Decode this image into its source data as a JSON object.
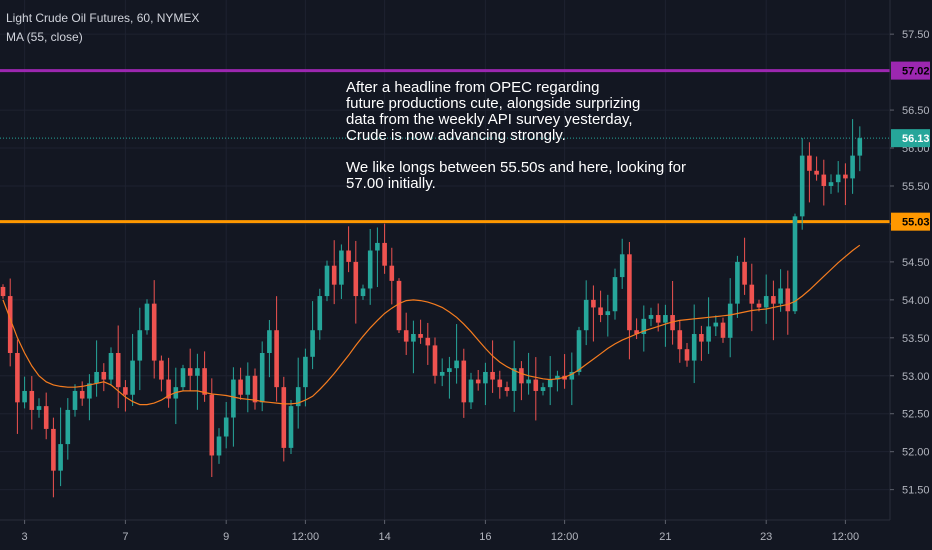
{
  "chart_data": {
    "type": "candlestick",
    "symbol_line": "Light Crude Oil Futures, 60, NYMEX",
    "indicator_line": "MA (55, close)",
    "y_ticks": [
      51.5,
      52.0,
      52.5,
      53.0,
      53.5,
      54.0,
      54.5,
      55.0,
      55.5,
      56.0,
      56.5,
      57.5
    ],
    "y_tick_labels": [
      "51.50",
      "52.00",
      "52.50",
      "53.00",
      "53.50",
      "54.00",
      "54.50",
      "55.00",
      "55.50",
      "56.00",
      "56.50",
      "57.50"
    ],
    "ylim": [
      51.1,
      57.95
    ],
    "x_ticks": [
      {
        "label": "3",
        "i": 3
      },
      {
        "label": "7",
        "i": 17
      },
      {
        "label": "9",
        "i": 31
      },
      {
        "label": "12:00",
        "i": 42
      },
      {
        "label": "14",
        "i": 53
      },
      {
        "label": "16",
        "i": 67
      },
      {
        "label": "12:00",
        "i": 78
      },
      {
        "label": "21",
        "i": 92
      },
      {
        "label": "23",
        "i": 106
      },
      {
        "label": "12:00",
        "i": 117
      }
    ],
    "num_bars": 120,
    "levels": [
      {
        "name": "resistance",
        "value": 57.02,
        "label": "57.02",
        "color": "#9c27b0"
      },
      {
        "name": "support",
        "value": 55.03,
        "label": "55.03",
        "color": "#ff9800"
      }
    ],
    "last_price": {
      "value": 56.13,
      "label": "56.13",
      "color": "#26a69a"
    },
    "annotation": [
      "After a headline from OPEC regarding",
      "future productions cute, alongside surprizing",
      "data from the weekly API survey yesterday,",
      "Crude is now advancing strongly.",
      "",
      "We like longs between 55.50s and here, looking for",
      "57.00 initially."
    ],
    "close": [
      54.05,
      53.3,
      52.65,
      52.8,
      52.55,
      52.6,
      52.3,
      51.75,
      52.1,
      52.55,
      52.8,
      52.7,
      52.9,
      53.05,
      52.95,
      53.3,
      52.85,
      52.75,
      53.2,
      53.6,
      53.95,
      53.2,
      52.95,
      52.7,
      52.85,
      53.1,
      53.0,
      53.1,
      52.75,
      51.95,
      52.2,
      52.45,
      52.95,
      52.75,
      53.0,
      52.65,
      53.3,
      53.6,
      52.85,
      52.05,
      52.6,
      52.85,
      53.25,
      53.6,
      54.05,
      54.45,
      54.2,
      54.65,
      54.5,
      54.05,
      54.15,
      54.65,
      54.75,
      54.45,
      54.25,
      53.6,
      53.45,
      53.55,
      53.5,
      53.4,
      53.0,
      53.05,
      53.1,
      53.2,
      52.65,
      52.95,
      52.9,
      53.05,
      52.95,
      52.85,
      52.8,
      53.1,
      52.9,
      52.95,
      52.8,
      52.85,
      52.95,
      53.0,
      52.95,
      53.05,
      53.6,
      54.0,
      53.9,
      53.8,
      53.85,
      54.3,
      54.6,
      53.6,
      53.55,
      53.75,
      53.8,
      53.7,
      53.8,
      53.6,
      53.35,
      53.2,
      53.55,
      53.45,
      53.65,
      53.7,
      53.5,
      53.95,
      54.5,
      54.2,
      53.95,
      53.9,
      54.05,
      53.95,
      54.15,
      53.85,
      55.1,
      55.9,
      55.7,
      55.65,
      55.5,
      55.55,
      55.65,
      55.6,
      55.9,
      56.13
    ],
    "ma55": [
      54.0,
      53.75,
      53.5,
      53.3,
      53.13,
      53.0,
      52.92,
      52.88,
      52.86,
      52.85,
      52.85,
      52.86,
      52.88,
      52.9,
      52.92,
      52.88,
      52.8,
      52.72,
      52.66,
      52.62,
      52.62,
      52.64,
      52.68,
      52.74,
      52.78,
      52.8,
      52.8,
      52.8,
      52.78,
      52.76,
      52.75,
      52.74,
      52.72,
      52.7,
      52.69,
      52.68,
      52.66,
      52.65,
      52.64,
      52.63,
      52.63,
      52.64,
      52.68,
      52.73,
      52.82,
      52.92,
      53.03,
      53.15,
      53.27,
      53.4,
      53.52,
      53.63,
      53.73,
      53.82,
      53.89,
      53.95,
      53.99,
      54.0,
      53.99,
      53.97,
      53.94,
      53.9,
      53.84,
      53.77,
      53.68,
      53.58,
      53.47,
      53.36,
      53.26,
      53.18,
      53.12,
      53.07,
      53.03,
      53.0,
      52.98,
      52.96,
      52.95,
      52.96,
      52.98,
      53.02,
      53.08,
      53.15,
      53.22,
      53.29,
      53.36,
      53.42,
      53.47,
      53.51,
      53.55,
      53.59,
      53.62,
      53.65,
      53.68,
      53.71,
      53.73,
      53.74,
      53.75,
      53.76,
      53.77,
      53.78,
      53.79,
      53.8,
      53.82,
      53.84,
      53.86,
      53.87,
      53.88,
      53.9,
      53.92,
      53.94,
      53.98,
      54.05,
      54.13,
      54.22,
      54.31,
      54.4,
      54.49,
      54.57,
      54.65,
      54.72
    ]
  }
}
